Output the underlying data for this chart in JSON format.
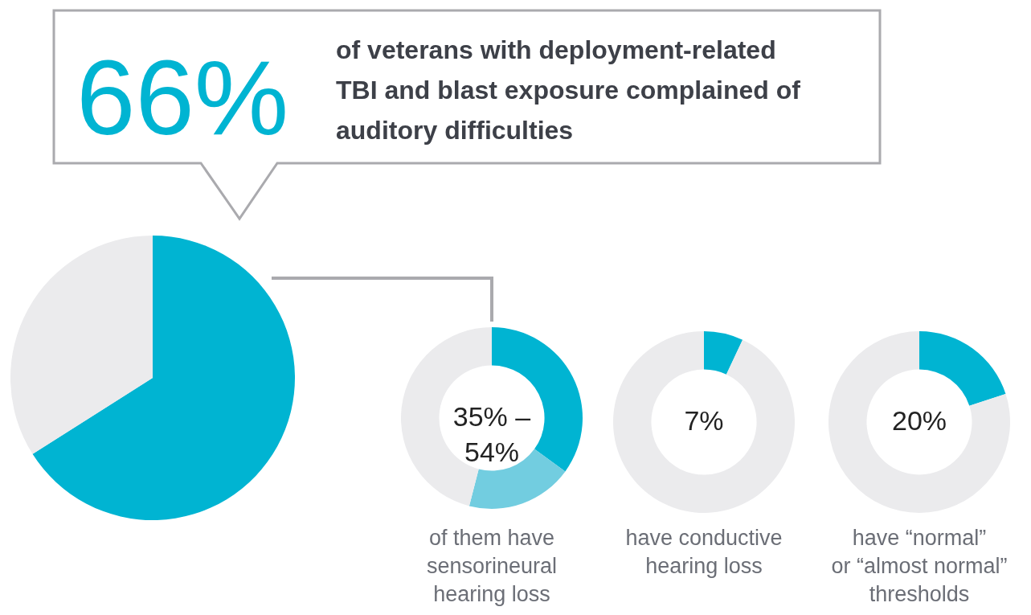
{
  "chart_data": [
    {
      "type": "pie",
      "categories": [
        null,
        null
      ],
      "values": [
        66,
        34
      ],
      "colors": [
        "#00b4d2",
        "#ebebed"
      ],
      "annotations": [
        "66%",
        "of veterans with deployment-related\nTBI and blast exposure complained of\nauditory difficulties"
      ]
    },
    {
      "type": "donut",
      "categories": [
        null,
        null,
        null
      ],
      "values": [
        35,
        19,
        46
      ],
      "colors": [
        "#00b4d2",
        "#72cde0",
        "#ebebed"
      ],
      "annotations": [
        "35% –\n54%",
        "of them have\nsensorineural\nhearing loss"
      ]
    },
    {
      "type": "donut",
      "categories": [
        null,
        null
      ],
      "values": [
        7,
        93
      ],
      "colors": [
        "#00b4d2",
        "#ebebed"
      ],
      "annotations": [
        "7%",
        "have conductive\nhearing loss"
      ]
    },
    {
      "type": "donut",
      "categories": [
        null,
        null
      ],
      "values": [
        20,
        80
      ],
      "colors": [
        "#00b4d2",
        "#ebebed"
      ],
      "annotations": [
        "20%",
        "have “normal”\nor “almost normal”\nthresholds"
      ]
    }
  ]
}
